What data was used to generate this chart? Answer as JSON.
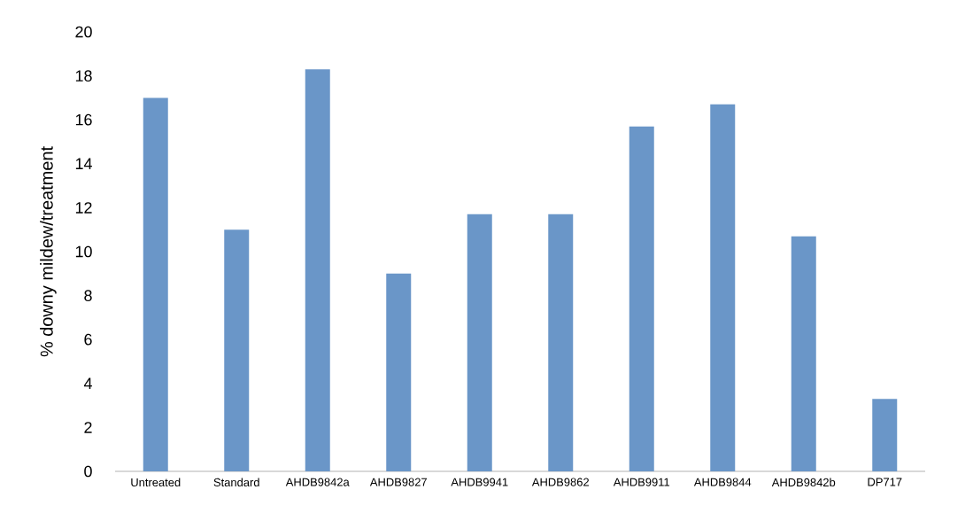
{
  "chart_data": {
    "type": "bar",
    "ylabel": "% downy mildew/treatment",
    "categories": [
      "Untreated",
      "Standard",
      "AHDB9842a",
      "AHDB9827",
      "AHDB9941",
      "AHDB9862",
      "AHDB9911",
      "AHDB9844",
      "AHDB9842b",
      "DP717"
    ],
    "values": [
      17.0,
      11.0,
      18.3,
      9.0,
      11.7,
      11.7,
      15.7,
      16.7,
      10.7,
      3.3
    ],
    "color": "#6a96c8",
    "ylim": [
      0,
      20
    ],
    "yticks": [
      0,
      2,
      4,
      6,
      8,
      10,
      12,
      14,
      16,
      18,
      20
    ]
  }
}
